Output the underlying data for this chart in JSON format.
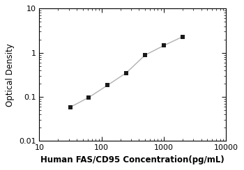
{
  "x_data": [
    31.25,
    62.5,
    125,
    250,
    500,
    1000,
    2000
  ],
  "y_data": [
    0.058,
    0.097,
    0.183,
    0.35,
    0.88,
    1.45,
    2.3
  ],
  "line_color": "#b0b0b0",
  "marker_color": "#1a1a1a",
  "marker_style": "s",
  "marker_size": 4.5,
  "xlabel": "Human FAS/CD95 Concentration(pg/mL)",
  "ylabel": "Optical Density",
  "xlim": [
    10,
    10000
  ],
  "ylim": [
    0.01,
    10
  ],
  "xticks": [
    10,
    100,
    1000,
    10000
  ],
  "yticks": [
    0.01,
    0.1,
    1,
    10
  ],
  "xlabel_fontsize": 8.5,
  "ylabel_fontsize": 8.5,
  "tick_fontsize": 8,
  "background_color": "#ffffff"
}
